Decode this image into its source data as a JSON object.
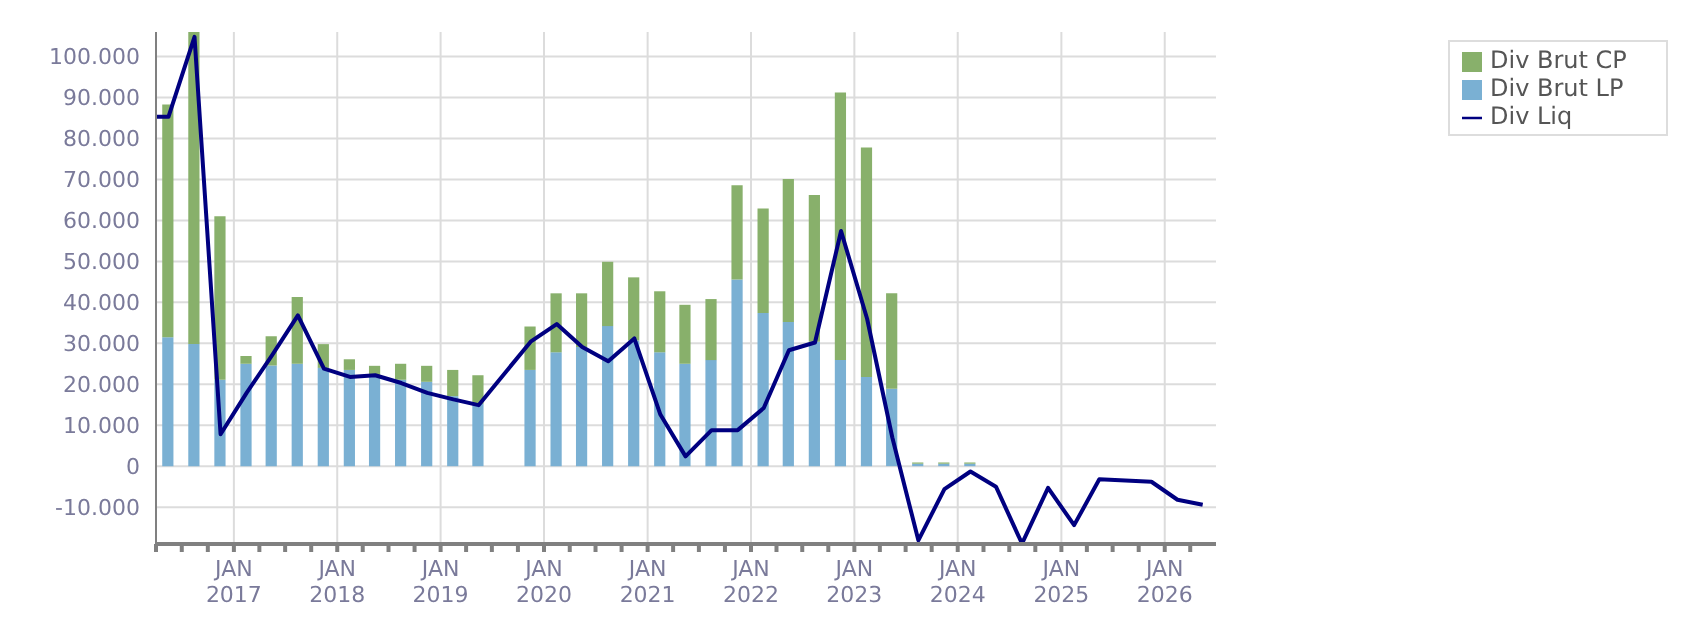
{
  "chart_data": {
    "type": "bar",
    "stacked": true,
    "grid": true,
    "legend": "top right",
    "x": [
      "2016-05-15",
      "2016-08-15",
      "2016-11-15",
      "2017-02-15",
      "2017-05-15",
      "2017-08-15",
      "2017-11-15",
      "2018-02-15",
      "2018-05-15",
      "2018-08-15",
      "2018-11-15",
      "2019-02-15",
      "2019-05-15",
      "2019-08-15",
      "2019-11-15",
      "2020-02-15",
      "2020-05-15",
      "2020-08-15",
      "2020-11-15",
      "2021-02-15",
      "2021-05-15",
      "2021-08-15",
      "2021-11-15",
      "2022-02-15",
      "2022-05-15",
      "2022-08-15",
      "2022-11-15",
      "2023-02-15",
      "2023-05-15",
      "2023-08-15",
      "2023-11-15",
      "2024-02-15",
      "2024-05-15",
      "2024-08-15",
      "2024-11-15",
      "2025-02-15",
      "2025-05-15",
      "2025-08-15",
      "2025-11-15",
      "2026-02-15",
      "2026-05-15"
    ],
    "xlim": [
      "2016-04-01",
      "2026-07-01"
    ],
    "xticks": [
      {
        "value": "2016-04-01",
        "label": null
      },
      {
        "value": "2016-07-01",
        "label": null
      },
      {
        "value": "2016-10-01",
        "label": null
      },
      {
        "value": "2017-01-01",
        "label": "JAN\n2017"
      },
      {
        "value": "2017-04-01",
        "label": null
      },
      {
        "value": "2017-07-01",
        "label": null
      },
      {
        "value": "2017-10-01",
        "label": null
      },
      {
        "value": "2018-01-01",
        "label": "JAN\n2018"
      },
      {
        "value": "2018-04-01",
        "label": null
      },
      {
        "value": "2018-07-01",
        "label": null
      },
      {
        "value": "2018-10-01",
        "label": null
      },
      {
        "value": "2019-01-01",
        "label": "JAN\n2019"
      },
      {
        "value": "2019-04-01",
        "label": null
      },
      {
        "value": "2019-07-01",
        "label": null
      },
      {
        "value": "2019-10-01",
        "label": null
      },
      {
        "value": "2020-01-01",
        "label": "JAN\n2020"
      },
      {
        "value": "2020-04-01",
        "label": null
      },
      {
        "value": "2020-07-01",
        "label": null
      },
      {
        "value": "2020-10-01",
        "label": null
      },
      {
        "value": "2021-01-01",
        "label": "JAN\n2021"
      },
      {
        "value": "2021-04-01",
        "label": null
      },
      {
        "value": "2021-07-01",
        "label": null
      },
      {
        "value": "2021-10-01",
        "label": null
      },
      {
        "value": "2022-01-01",
        "label": "JAN\n2022"
      },
      {
        "value": "2022-04-01",
        "label": null
      },
      {
        "value": "2022-07-01",
        "label": null
      },
      {
        "value": "2022-10-01",
        "label": null
      },
      {
        "value": "2023-01-01",
        "label": "JAN\n2023"
      },
      {
        "value": "2023-04-01",
        "label": null
      },
      {
        "value": "2023-07-01",
        "label": null
      },
      {
        "value": "2023-10-01",
        "label": null
      },
      {
        "value": "2024-01-01",
        "label": "JAN\n2024"
      },
      {
        "value": "2024-04-01",
        "label": null
      },
      {
        "value": "2024-07-01",
        "label": null
      },
      {
        "value": "2024-10-01",
        "label": null
      },
      {
        "value": "2025-01-01",
        "label": "JAN\n2025"
      },
      {
        "value": "2025-04-01",
        "label": null
      },
      {
        "value": "2025-07-01",
        "label": null
      },
      {
        "value": "2025-10-01",
        "label": null
      },
      {
        "value": "2026-01-01",
        "label": "JAN\n2026"
      },
      {
        "value": "2026-04-01",
        "label": null
      }
    ],
    "ylim": [
      -19000,
      106000
    ],
    "yticks": [
      {
        "value": -10000,
        "label": "-10.000"
      },
      0,
      {
        "value": 10000,
        "label": "10.000"
      },
      {
        "value": 20000,
        "label": "20.000"
      },
      {
        "value": 30000,
        "label": "30.000"
      },
      {
        "value": 40000,
        "label": "40.000"
      },
      {
        "value": 50000,
        "label": "50.000"
      },
      {
        "value": 60000,
        "label": "60.000"
      },
      {
        "value": 70000,
        "label": "70.000"
      },
      {
        "value": 80000,
        "label": "80.000"
      },
      {
        "value": 90000,
        "label": "90.000"
      },
      {
        "value": 100000,
        "label": "100.000"
      }
    ],
    "series": [
      {
        "name": "Div Brut LP",
        "color": "#7ab0d3",
        "values": [
          31500,
          29800,
          21100,
          25000,
          24600,
          25000,
          24000,
          23500,
          22200,
          21100,
          20600,
          17100,
          15200,
          null,
          23500,
          27800,
          29100,
          34200,
          30700,
          27800,
          25000,
          25900,
          45600,
          37400,
          35200,
          30400,
          25900,
          21800,
          18900,
          600,
          600,
          600,
          0,
          0,
          0,
          0,
          0,
          0,
          0,
          0,
          0
        ]
      },
      {
        "name": "Div Brut CP",
        "color": "#88b06b",
        "values": [
          56800,
          76200,
          39900,
          1900,
          7100,
          16300,
          5800,
          2600,
          2300,
          3900,
          3900,
          6400,
          7000,
          null,
          10600,
          14400,
          13100,
          15700,
          15400,
          14900,
          14400,
          14900,
          23000,
          25500,
          34900,
          35800,
          65300,
          56000,
          23300,
          300,
          300,
          300,
          0,
          0,
          0,
          0,
          0,
          0,
          0,
          0,
          0
        ]
      },
      {
        "name": "Div Liq",
        "type": "line",
        "color": "#000080",
        "marker": "none",
        "line_style": "solid",
        "x": [
          "2016-04-01",
          "2016-05-15",
          "2016-08-15",
          "2016-11-15",
          "2017-02-15",
          "2017-05-15",
          "2017-08-15",
          "2017-11-15",
          "2018-02-15",
          "2018-05-15",
          "2018-08-15",
          "2018-11-15",
          "2019-02-15",
          "2019-05-15",
          "2019-11-15",
          "2020-02-15",
          "2020-05-15",
          "2020-08-15",
          "2020-11-15",
          "2021-02-15",
          "2021-05-15",
          "2021-08-15",
          "2021-11-15",
          "2022-02-15",
          "2022-05-15",
          "2022-08-15",
          "2022-11-15",
          "2023-02-15",
          "2023-05-15",
          "2023-08-15",
          "2023-11-15",
          "2024-02-15",
          "2024-05-15",
          "2024-08-15",
          "2024-11-15",
          "2025-02-15",
          "2025-05-15",
          "2025-08-15",
          "2025-11-15",
          "2026-02-15",
          "2026-05-15"
        ],
        "values": [
          85300,
          85300,
          104800,
          7800,
          17900,
          27000,
          36800,
          23800,
          21800,
          22200,
          20300,
          17900,
          16300,
          14900,
          30400,
          34700,
          29100,
          25600,
          31200,
          12600,
          2400,
          8800,
          8800,
          14200,
          28300,
          30200,
          57400,
          36000,
          7000,
          -18100,
          -5600,
          -1300,
          -5000,
          -18900,
          -5300,
          -14400,
          -3200,
          -3500,
          -3800,
          -8200,
          -9400
        ]
      }
    ]
  }
}
